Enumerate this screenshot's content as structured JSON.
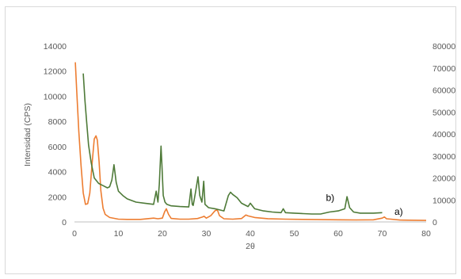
{
  "chart_data": {
    "type": "line",
    "title": "",
    "xlabel": "2θ",
    "ylabel": "Intensidad (CPS)",
    "y2label": "",
    "xlim": [
      0,
      80
    ],
    "ylim": [
      0,
      14000
    ],
    "y2lim": [
      0,
      80000
    ],
    "x_ticks": [
      "0",
      "10",
      "20",
      "30",
      "40",
      "50",
      "60",
      "70",
      "80"
    ],
    "y_ticks": [
      "0",
      "2000",
      "4000",
      "6000",
      "8000",
      "10000",
      "12000",
      "14000"
    ],
    "y2_ticks": [
      "0",
      "10000",
      "20000",
      "30000",
      "40000",
      "50000",
      "60000",
      "70000",
      "80000"
    ],
    "grid": false,
    "legend": "none",
    "annotations": [
      {
        "text": "b)",
        "x": 57.2,
        "y_right": 9500
      },
      {
        "text": "a)",
        "x": 72.8,
        "y_right": 3300
      }
    ],
    "series": [
      {
        "axis": "left",
        "color": "#ed7d31",
        "x": [
          0.2,
          0.5,
          1.0,
          1.5,
          2.0,
          2.5,
          3.0,
          3.5,
          4.0,
          4.5,
          4.9,
          5.2,
          5.6,
          6.0,
          6.5,
          7.0,
          8.0,
          10.0,
          12.0,
          15.0,
          18.0,
          19.0,
          20.0,
          20.5,
          20.9,
          21.4,
          22.0,
          24.0,
          26.0,
          28.0,
          29.0,
          29.5,
          30.0,
          31.0,
          32.0,
          32.5,
          33.0,
          34.0,
          36.0,
          38.0,
          39.0,
          39.5,
          41.0,
          44.0,
          48.0,
          52.0,
          56.0,
          60.0,
          64.0,
          68.0,
          70.0,
          70.5,
          71.0,
          74.0,
          78.0,
          80.0
        ],
        "values": [
          12700,
          10500,
          7200,
          4500,
          2300,
          1400,
          1450,
          2300,
          4600,
          6600,
          6850,
          6500,
          4800,
          2500,
          1100,
          600,
          350,
          220,
          200,
          200,
          300,
          250,
          300,
          800,
          1050,
          600,
          280,
          220,
          220,
          270,
          380,
          450,
          300,
          500,
          900,
          950,
          500,
          250,
          220,
          270,
          550,
          480,
          350,
          260,
          220,
          200,
          180,
          170,
          160,
          170,
          300,
          400,
          250,
          150,
          130,
          120
        ]
      },
      {
        "axis": "right",
        "color": "#4e7a38",
        "x": [
          2.0,
          2.4,
          2.8,
          3.2,
          3.8,
          4.5,
          5.5,
          6.5,
          7.5,
          8.0,
          8.5,
          9.0,
          9.5,
          10.0,
          11.0,
          12.0,
          14.0,
          16.0,
          18.0,
          18.6,
          19.0,
          19.3,
          19.7,
          19.9,
          20.2,
          20.6,
          21.0,
          22.0,
          24.0,
          26.0,
          26.5,
          26.8,
          27.0,
          27.5,
          28.1,
          28.5,
          29.0,
          29.4,
          29.7,
          30.5,
          32.0,
          34.0,
          35.0,
          35.5,
          36.0,
          37.0,
          38.0,
          39.5,
          40.0,
          41.0,
          43.0,
          45.0,
          47.0,
          47.5,
          48.0,
          50.0,
          52.0,
          54.0,
          56.0,
          58.0,
          60.0,
          61.5,
          62.0,
          62.6,
          63.5,
          65.0,
          68.0,
          70.0
        ],
        "values": [
          67500,
          55000,
          45000,
          35000,
          27000,
          20000,
          17500,
          16500,
          15500,
          16000,
          19000,
          26000,
          18000,
          14000,
          12000,
          10500,
          9000,
          8500,
          8000,
          14000,
          9000,
          17000,
          34500,
          26000,
          12000,
          9000,
          8000,
          7300,
          7000,
          6800,
          15000,
          8000,
          7500,
          13000,
          20500,
          12000,
          9000,
          18500,
          8000,
          6500,
          6000,
          5000,
          12000,
          13500,
          12500,
          11000,
          8500,
          7000,
          8500,
          6000,
          5000,
          4500,
          4200,
          6000,
          4200,
          4000,
          3800,
          3600,
          3600,
          4500,
          5000,
          6000,
          11500,
          6500,
          4500,
          4000,
          4000,
          4200
        ]
      }
    ]
  }
}
